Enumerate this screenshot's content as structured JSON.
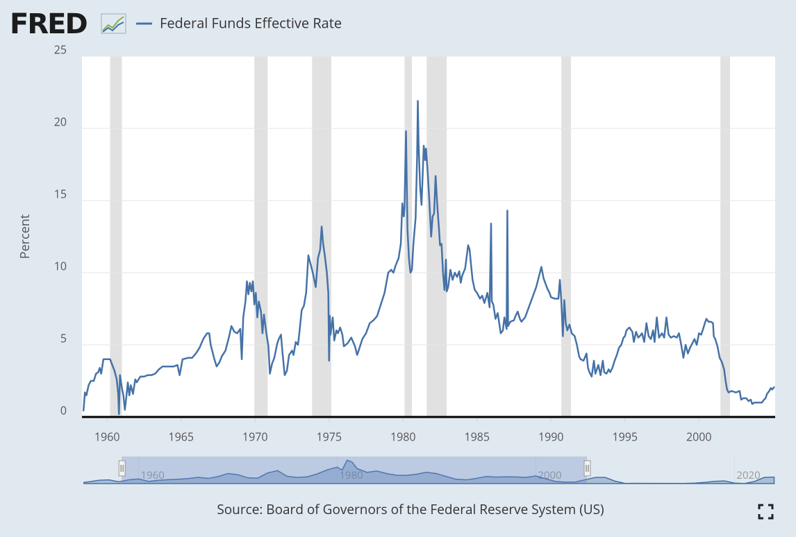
{
  "logo": "FRED",
  "source": "Source: Board of Governors of the Federal Reserve System (US)",
  "chart_data": {
    "type": "line",
    "ylabel": "Percent",
    "grid": true,
    "xlim": [
      1958.3,
      2005.15
    ],
    "ylim": [
      0,
      25
    ],
    "xticks": [
      1960,
      1965,
      1970,
      1975,
      1980,
      1985,
      1990,
      1995,
      2000
    ],
    "yticks": [
      0,
      5,
      10,
      15,
      20,
      25
    ],
    "recession_color": "#e1e1e1",
    "recessions": [
      [
        1960.2,
        1961.0
      ],
      [
        1969.95,
        1970.85
      ],
      [
        1973.85,
        1975.15
      ],
      [
        1980.1,
        1980.6
      ],
      [
        1981.6,
        1982.95
      ],
      [
        1990.7,
        1991.35
      ],
      [
        2001.45,
        2002.1
      ]
    ],
    "x": [
      1958.4,
      1958.5,
      1958.6,
      1958.75,
      1958.9,
      1959.1,
      1959.25,
      1959.4,
      1959.5,
      1959.6,
      1959.75,
      1960.0,
      1960.2,
      1960.35,
      1960.5,
      1960.65,
      1960.75,
      1960.8,
      1960.87,
      1961.0,
      1961.1,
      1961.2,
      1961.3,
      1961.4,
      1961.5,
      1961.6,
      1961.75,
      1961.9,
      1962.0,
      1962.25,
      1962.5,
      1962.75,
      1963.0,
      1963.25,
      1963.5,
      1963.75,
      1964.0,
      1964.25,
      1964.5,
      1964.75,
      1964.9,
      1965.1,
      1965.5,
      1965.75,
      1966.0,
      1966.25,
      1966.5,
      1966.75,
      1966.9,
      1967.0,
      1967.25,
      1967.4,
      1967.6,
      1967.75,
      1968.0,
      1968.25,
      1968.4,
      1968.6,
      1968.8,
      1969.0,
      1969.1,
      1969.2,
      1969.35,
      1969.45,
      1969.55,
      1969.65,
      1969.75,
      1969.85,
      1969.95,
      1970.05,
      1970.15,
      1970.25,
      1970.4,
      1970.5,
      1970.6,
      1970.75,
      1970.9,
      1971.0,
      1971.15,
      1971.3,
      1971.5,
      1971.6,
      1971.75,
      1971.85,
      1972.0,
      1972.15,
      1972.3,
      1972.5,
      1972.6,
      1972.75,
      1972.9,
      1973.0,
      1973.15,
      1973.3,
      1973.45,
      1973.6,
      1973.75,
      1973.9,
      1974.1,
      1974.25,
      1974.4,
      1974.5,
      1974.6,
      1974.7,
      1974.85,
      1974.95,
      1975.0,
      1975.05,
      1975.1,
      1975.25,
      1975.35,
      1975.5,
      1975.6,
      1975.75,
      1975.9,
      1976.0,
      1976.25,
      1976.5,
      1976.75,
      1976.9,
      1977.0,
      1977.25,
      1977.5,
      1977.75,
      1978.0,
      1978.25,
      1978.5,
      1978.75,
      1979.0,
      1979.2,
      1979.35,
      1979.5,
      1979.7,
      1979.85,
      1979.95,
      1980.05,
      1980.1,
      1980.2,
      1980.3,
      1980.4,
      1980.5,
      1980.6,
      1980.7,
      1980.85,
      1980.95,
      1981.0,
      1981.05,
      1981.15,
      1981.25,
      1981.4,
      1981.5,
      1981.55,
      1981.65,
      1981.75,
      1981.9,
      1982.0,
      1982.1,
      1982.2,
      1982.3,
      1982.45,
      1982.5,
      1982.6,
      1982.7,
      1982.8,
      1982.9,
      1982.95,
      1983.05,
      1983.2,
      1983.35,
      1983.5,
      1983.65,
      1983.8,
      1983.9,
      1984.0,
      1984.2,
      1984.4,
      1984.5,
      1984.6,
      1984.7,
      1984.85,
      1985.0,
      1985.2,
      1985.35,
      1985.5,
      1985.7,
      1985.85,
      1985.95,
      1986.0,
      1986.1,
      1986.25,
      1986.4,
      1986.5,
      1986.6,
      1986.75,
      1986.85,
      1987.0,
      1987.05,
      1987.1,
      1987.25,
      1987.5,
      1987.6,
      1987.75,
      1987.9,
      1988.0,
      1988.25,
      1988.5,
      1988.75,
      1989.0,
      1989.2,
      1989.35,
      1989.5,
      1989.75,
      1989.9,
      1990.0,
      1990.25,
      1990.5,
      1990.6,
      1990.7,
      1990.8,
      1990.9,
      1991.0,
      1991.1,
      1991.25,
      1991.4,
      1991.6,
      1991.75,
      1991.9,
      1992.0,
      1992.2,
      1992.4,
      1992.5,
      1992.6,
      1992.75,
      1992.9,
      1993.0,
      1993.2,
      1993.35,
      1993.5,
      1993.6,
      1993.75,
      1993.9,
      1994.0,
      1994.15,
      1994.3,
      1994.45,
      1994.6,
      1994.75,
      1994.9,
      1995.0,
      1995.1,
      1995.3,
      1995.5,
      1995.6,
      1995.75,
      1995.9,
      1996.0,
      1996.15,
      1996.3,
      1996.45,
      1996.6,
      1996.75,
      1996.9,
      1997.0,
      1997.15,
      1997.3,
      1997.5,
      1997.65,
      1997.8,
      1997.95,
      1998.1,
      1998.3,
      1998.5,
      1998.65,
      1998.8,
      1998.95,
      1999.1,
      1999.25,
      1999.4,
      1999.55,
      1999.7,
      1999.85,
      2000.0,
      2000.15,
      2000.25,
      2000.4,
      2000.5,
      2000.65,
      2000.8,
      2000.95,
      2001.0,
      2001.1,
      2001.25,
      2001.4,
      2001.55,
      2001.7,
      2001.8,
      2001.9,
      2002.0,
      2002.2,
      2002.5,
      2002.75,
      2002.85,
      2003.0,
      2003.2,
      2003.35,
      2003.5,
      2003.6,
      2003.75,
      2004.0,
      2004.25,
      2004.4,
      2004.5,
      2004.6,
      2004.75,
      2004.85,
      2004.95,
      2005.1
    ],
    "series": [
      {
        "name": "Federal Funds Effective Rate",
        "color": "#4572a7",
        "values": [
          0.4,
          1.7,
          1.5,
          2.2,
          2.5,
          2.5,
          3.0,
          3.1,
          3.4,
          3.0,
          4.0,
          4.0,
          4.0,
          3.6,
          3.2,
          2.6,
          1.6,
          0.2,
          2.9,
          2.0,
          1.5,
          0.5,
          1.4,
          2.4,
          1.5,
          2.2,
          1.6,
          2.6,
          2.4,
          2.8,
          2.8,
          2.9,
          2.9,
          3.0,
          3.3,
          3.5,
          3.5,
          3.5,
          3.5,
          3.6,
          2.9,
          4.0,
          4.1,
          4.1,
          4.4,
          4.8,
          5.4,
          5.8,
          5.8,
          5.0,
          4.0,
          3.5,
          3.8,
          4.2,
          4.6,
          5.6,
          6.3,
          5.9,
          5.8,
          6.1,
          4.0,
          6.9,
          8.0,
          9.4,
          8.5,
          9.3,
          8.7,
          9.4,
          7.8,
          8.6,
          6.9,
          8.0,
          7.3,
          5.8,
          7.1,
          5.9,
          4.9,
          3.0,
          3.7,
          4.1,
          5.1,
          5.4,
          5.7,
          4.5,
          2.9,
          3.2,
          4.3,
          4.6,
          4.3,
          5.2,
          5.0,
          5.9,
          7.4,
          7.7,
          8.6,
          11.2,
          10.6,
          10.0,
          9.0,
          11.0,
          11.6,
          13.2,
          12.0,
          11.3,
          10.0,
          8.6,
          3.9,
          7.0,
          5.7,
          6.9,
          5.3,
          6.0,
          5.8,
          6.2,
          5.7,
          4.9,
          5.1,
          5.5,
          4.9,
          4.3,
          4.6,
          5.4,
          5.8,
          6.5,
          6.7,
          7.0,
          7.8,
          8.6,
          10.0,
          10.2,
          10.0,
          10.5,
          11.0,
          12.0,
          14.8,
          13.9,
          14.5,
          19.8,
          13.0,
          11.0,
          10.0,
          10.2,
          12.0,
          13.8,
          18.0,
          21.9,
          19.0,
          16.0,
          14.7,
          18.8,
          17.8,
          18.6,
          17.2,
          15.5,
          12.5,
          13.9,
          14.1,
          16.7,
          14.9,
          12.7,
          11.9,
          12.0,
          10.0,
          8.8,
          10.9,
          8.7,
          9.0,
          10.2,
          9.5,
          10.0,
          9.7,
          10.1,
          9.3,
          9.8,
          10.3,
          11.9,
          11.6,
          10.5,
          9.5,
          8.8,
          8.6,
          8.2,
          8.4,
          7.9,
          8.6,
          7.6,
          13.4,
          8.0,
          7.8,
          6.8,
          7.2,
          6.5,
          5.8,
          6.0,
          6.9,
          6.1,
          14.3,
          6.3,
          6.6,
          6.7,
          7.0,
          7.3,
          6.8,
          6.6,
          6.9,
          7.6,
          8.3,
          9.0,
          9.8,
          10.4,
          9.6,
          8.9,
          8.6,
          8.3,
          8.2,
          8.2,
          9.5,
          8.0,
          5.6,
          8.1,
          6.5,
          6.0,
          6.4,
          5.8,
          5.6,
          5.0,
          4.2,
          4.0,
          3.9,
          4.4,
          3.4,
          3.1,
          2.8,
          3.9,
          3.0,
          3.6,
          2.9,
          3.9,
          3.1,
          3.0,
          3.3,
          3.1,
          3.4,
          3.9,
          4.3,
          4.8,
          5.0,
          5.5,
          5.6,
          6.0,
          6.2,
          5.9,
          5.2,
          5.9,
          5.5,
          5.6,
          5.8,
          5.2,
          6.5,
          5.6,
          5.4,
          6.0,
          5.2,
          6.9,
          5.5,
          5.8,
          5.5,
          6.9,
          5.7,
          5.5,
          5.6,
          5.5,
          5.8,
          5.0,
          4.1,
          5.0,
          4.4,
          4.8,
          5.1,
          5.4,
          5.0,
          5.8,
          5.7,
          6.0,
          6.5,
          6.8,
          6.6,
          6.6,
          6.5,
          5.6,
          5.4,
          4.9,
          4.1,
          3.8,
          3.3,
          2.5,
          1.9,
          1.7,
          1.8,
          1.7,
          1.8,
          1.2,
          1.3,
          1.3,
          1.1,
          1.2,
          0.9,
          1.0,
          1.0,
          1.0,
          1.2,
          1.3,
          1.6,
          1.8,
          2.0,
          1.9,
          2.1
        ]
      }
    ],
    "navigator": {
      "xlim": [
        1954.3,
        2024.1
      ],
      "ylim": [
        0,
        22
      ],
      "xticks": [
        1960,
        1980,
        2000,
        2020
      ],
      "x": [
        1954.5,
        1955,
        1956,
        1957,
        1958,
        1959,
        1960,
        1961,
        1962,
        1963,
        1964,
        1965,
        1966,
        1967,
        1968,
        1969,
        1970,
        1971,
        1972,
        1973,
        1974,
        1975,
        1976,
        1977,
        1978,
        1979,
        1980,
        1980.5,
        1981,
        1981.5,
        1982,
        1983,
        1984,
        1985,
        1986,
        1987,
        1988,
        1989,
        1990,
        1991,
        1992,
        1993,
        1994,
        1995,
        1996,
        1997,
        1998,
        1999,
        2000,
        2001,
        2002,
        2003,
        2004,
        2005,
        2006,
        2007,
        2008,
        2009,
        2010,
        2015,
        2016,
        2017,
        2018,
        2019,
        2020,
        2021,
        2022,
        2023,
        2024
      ],
      "values": [
        1.0,
        1.5,
        2.7,
        3.0,
        1.5,
        3.0,
        3.8,
        1.8,
        2.7,
        3.2,
        3.5,
        4.1,
        5.1,
        4.2,
        5.7,
        8.2,
        7.2,
        4.7,
        4.4,
        8.7,
        10.5,
        5.8,
        5.0,
        5.5,
        7.9,
        11.2,
        13.4,
        11,
        19,
        17.5,
        12.2,
        9.1,
        10.2,
        8.1,
        6.8,
        6.7,
        7.6,
        9.2,
        8.1,
        5.7,
        3.5,
        3.0,
        4.2,
        5.8,
        5.3,
        5.5,
        5.4,
        5.0,
        6.2,
        3.9,
        1.7,
        1.1,
        1.3,
        3.2,
        5.0,
        5.0,
        1.9,
        0.16,
        0.18,
        0.13,
        0.4,
        1.0,
        1.8,
        2.2,
        0.4,
        0.08,
        1.7,
        5.0,
        5.3
      ]
    }
  }
}
